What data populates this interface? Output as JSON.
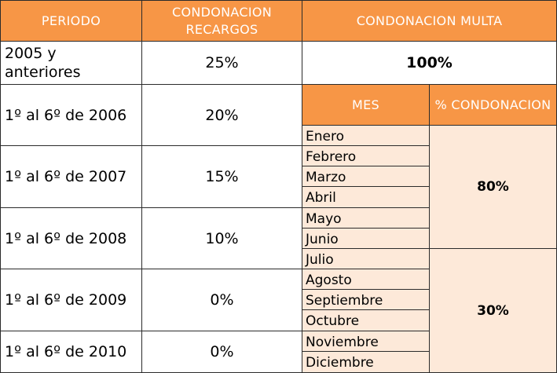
{
  "headers": {
    "periodo": "PERIODO",
    "condonacion_recargos": "CONDONACION RECARGOS",
    "condonacion_multa": "CONDONACION MULTA",
    "mes": "MES",
    "pct_condonacion": "% CONDONACION"
  },
  "periods": [
    {
      "periodo": "2005 y anteriores",
      "recargos": "25%"
    },
    {
      "periodo": "1º al 6º de 2006",
      "recargos": "20%"
    },
    {
      "periodo": "1º al 6º de 2007",
      "recargos": "15%"
    },
    {
      "periodo": "1º al 6º de 2008",
      "recargos": "10%"
    },
    {
      "periodo": "1º al 6º de 2009",
      "recargos": "0%"
    },
    {
      "periodo": "1º al 6º de 2010",
      "recargos": "0%"
    }
  ],
  "multa_2005": "100%",
  "months": [
    "Enero",
    "Febrero",
    "Marzo",
    "Abril",
    "Mayo",
    "Junio",
    "Julio",
    "Agosto",
    "Septiembre",
    "Octubre",
    "Noviembre",
    "Diciembre"
  ],
  "pct_first_half": "80%",
  "pct_second_half": "30%",
  "colors": {
    "header_bg": "#f79646",
    "header_text": "#ffffff",
    "month_bg": "#fde9d9",
    "border": "#2b2b2b"
  }
}
